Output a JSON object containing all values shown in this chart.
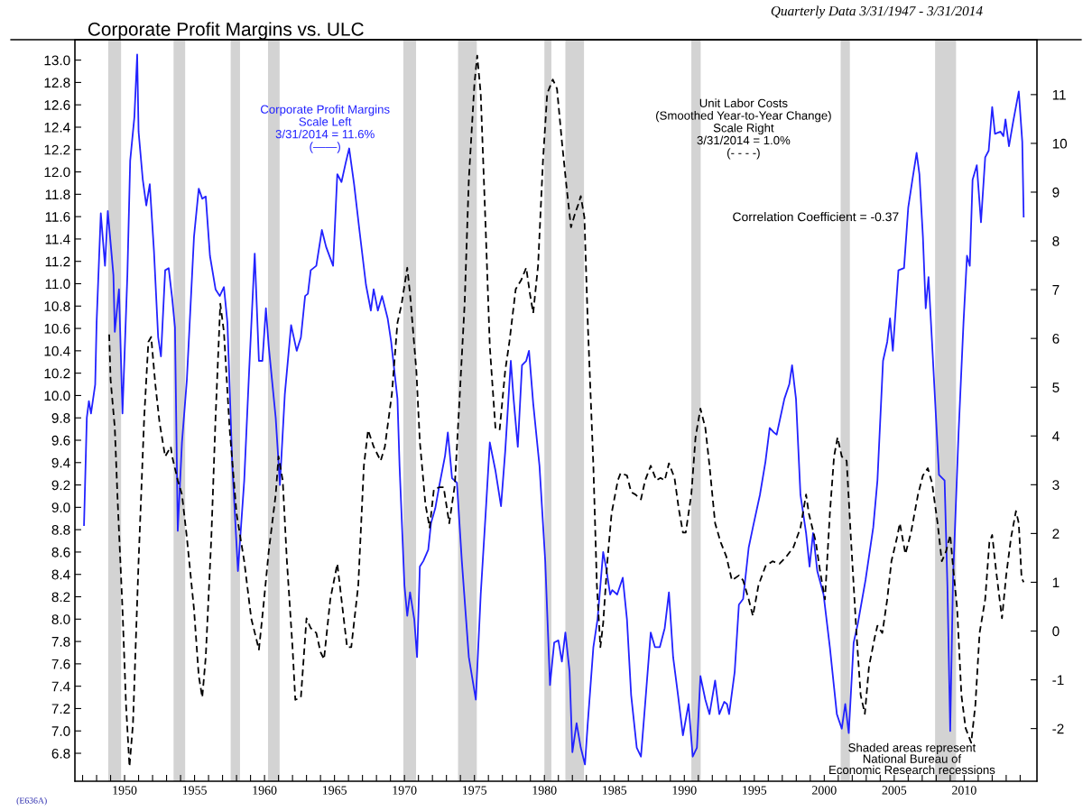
{
  "chart_data": {
    "type": "line",
    "title": "Corporate Profit Margins vs. ULC",
    "subtitle": "Quarterly Data 3/31/1947 - 3/31/2014",
    "annotations": [
      "Corporate Profit Margins\nScale Left\n3/31/2014 = 11.6%\n(——)",
      "Unit Labor Costs\n(Smoothed Year-to-Year Change)\nScale Right\n3/31/2014 = 1.0%\n(- - - -)",
      "Correlation Coefficient = -0.37",
      "Shaded areas represent\nNational Bureau of\nEconomic Research recessions",
      "(E636A)"
    ],
    "grid": false,
    "legend": false,
    "xlim": [
      1946.45,
      2015.2
    ],
    "xticks": [
      {
        "value": 1947,
        "label": null
      },
      {
        "value": 1948,
        "label": null
      },
      {
        "value": 1949,
        "label": null
      },
      1950,
      {
        "value": 1951,
        "label": null
      },
      {
        "value": 1952,
        "label": null
      },
      {
        "value": 1953,
        "label": null
      },
      {
        "value": 1954,
        "label": null
      },
      1955,
      {
        "value": 1956,
        "label": null
      },
      {
        "value": 1957,
        "label": null
      },
      {
        "value": 1958,
        "label": null
      },
      {
        "value": 1959,
        "label": null
      },
      1960,
      {
        "value": 1961,
        "label": null
      },
      {
        "value": 1962,
        "label": null
      },
      {
        "value": 1963,
        "label": null
      },
      {
        "value": 1964,
        "label": null
      },
      1965,
      {
        "value": 1966,
        "label": null
      },
      {
        "value": 1967,
        "label": null
      },
      {
        "value": 1968,
        "label": null
      },
      {
        "value": 1969,
        "label": null
      },
      1970,
      {
        "value": 1971,
        "label": null
      },
      {
        "value": 1972,
        "label": null
      },
      {
        "value": 1973,
        "label": null
      },
      {
        "value": 1974,
        "label": null
      },
      1975,
      {
        "value": 1976,
        "label": null
      },
      {
        "value": 1977,
        "label": null
      },
      {
        "value": 1978,
        "label": null
      },
      {
        "value": 1979,
        "label": null
      },
      1980,
      {
        "value": 1981,
        "label": null
      },
      {
        "value": 1982,
        "label": null
      },
      {
        "value": 1983,
        "label": null
      },
      {
        "value": 1984,
        "label": null
      },
      1985,
      {
        "value": 1986,
        "label": null
      },
      {
        "value": 1987,
        "label": null
      },
      {
        "value": 1988,
        "label": null
      },
      {
        "value": 1989,
        "label": null
      },
      1990,
      {
        "value": 1991,
        "label": null
      },
      {
        "value": 1992,
        "label": null
      },
      {
        "value": 1993,
        "label": null
      },
      {
        "value": 1994,
        "label": null
      },
      1995,
      {
        "value": 1996,
        "label": null
      },
      {
        "value": 1997,
        "label": null
      },
      {
        "value": 1998,
        "label": null
      },
      {
        "value": 1999,
        "label": null
      },
      2000,
      {
        "value": 2001,
        "label": null
      },
      {
        "value": 2002,
        "label": null
      },
      {
        "value": 2003,
        "label": null
      },
      {
        "value": 2004,
        "label": null
      },
      2005,
      {
        "value": 2006,
        "label": null
      },
      {
        "value": 2007,
        "label": null
      },
      {
        "value": 2008,
        "label": null
      },
      {
        "value": 2009,
        "label": null
      },
      2010,
      {
        "value": 2011,
        "label": null
      },
      {
        "value": 2012,
        "label": null
      },
      {
        "value": 2013,
        "label": null
      },
      {
        "value": 2014,
        "label": null
      }
    ],
    "ylim": [
      6.55,
      13.18
    ],
    "yticks": [
      6.8,
      {
        "value": 7,
        "label": "7.0"
      },
      7.2,
      7.4,
      7.6,
      7.8,
      {
        "value": 8,
        "label": "8.0"
      },
      8.2,
      8.4,
      8.6,
      8.8,
      {
        "value": 9,
        "label": "9.0"
      },
      9.2,
      9.4,
      9.6,
      9.8,
      {
        "value": 10,
        "label": "10.0"
      },
      10.2,
      10.4,
      10.6,
      10.8,
      {
        "value": 11,
        "label": "11.0"
      },
      11.2,
      11.4,
      11.6,
      11.8,
      {
        "value": 12,
        "label": "12.0"
      },
      12.2,
      12.4,
      12.6,
      12.8,
      {
        "value": 13,
        "label": "13.0"
      }
    ],
    "y2lim": [
      -3.08,
      12.12
    ],
    "y2ticks": [
      -2,
      -1,
      0,
      1,
      2,
      3,
      4,
      5,
      6,
      7,
      8,
      9,
      10,
      11
    ],
    "bands": [
      {
        "axis": "x",
        "from": 1948.83,
        "to": 1949.75,
        "color": "#d3d3d3"
      },
      {
        "axis": "x",
        "from": 1953.5,
        "to": 1954.33,
        "color": "#d3d3d3"
      },
      {
        "axis": "x",
        "from": 1957.58,
        "to": 1958.25,
        "color": "#d3d3d3"
      },
      {
        "axis": "x",
        "from": 1960.25,
        "to": 1961.08,
        "color": "#d3d3d3"
      },
      {
        "axis": "x",
        "from": 1969.92,
        "to": 1970.83,
        "color": "#d3d3d3"
      },
      {
        "axis": "x",
        "from": 1973.83,
        "to": 1975.17,
        "color": "#d3d3d3"
      },
      {
        "axis": "x",
        "from": 1980.0,
        "to": 1980.5,
        "color": "#d3d3d3"
      },
      {
        "axis": "x",
        "from": 1981.5,
        "to": 1982.83,
        "color": "#d3d3d3"
      },
      {
        "axis": "x",
        "from": 1990.5,
        "to": 1991.17,
        "color": "#d3d3d3"
      },
      {
        "axis": "x",
        "from": 2001.17,
        "to": 2001.83,
        "color": "#d3d3d3"
      },
      {
        "axis": "x",
        "from": 2007.92,
        "to": 2009.42,
        "color": "#d3d3d3"
      }
    ],
    "series": [
      {
        "color": "#2222ff",
        "line_style": "solid",
        "x": [
          1947.1,
          1947.3,
          1947.45,
          1947.6,
          1947.9,
          1948.0,
          1948.3,
          1948.6,
          1948.8,
          1949.2,
          1949.3,
          1949.6,
          1949.85,
          1950.2,
          1950.4,
          1950.7,
          1950.9,
          1951.0,
          1951.3,
          1951.55,
          1951.8,
          1952.1,
          1952.4,
          1952.6,
          1952.9,
          1953.15,
          1953.4,
          1953.6,
          1953.8,
          1954.1,
          1954.45,
          1954.96,
          1955.3,
          1955.55,
          1955.8,
          1956.1,
          1956.5,
          1956.8,
          1957.1,
          1957.35,
          1957.7,
          1958.1,
          1958.55,
          1958.9,
          1959.3,
          1959.6,
          1959.85,
          1960.1,
          1960.3,
          1960.8,
          1961.1,
          1961.45,
          1961.9,
          1962.3,
          1962.6,
          1962.9,
          1963.1,
          1963.3,
          1963.7,
          1964.1,
          1964.4,
          1964.9,
          1965.2,
          1965.5,
          1965.8,
          1966.05,
          1966.4,
          1966.8,
          1967.25,
          1967.6,
          1967.8,
          1968.1,
          1968.4,
          1968.8,
          1969.05,
          1969.5,
          1969.65,
          1970.0,
          1970.2,
          1970.4,
          1970.7,
          1970.9,
          1971.1,
          1971.35,
          1971.7,
          1971.9,
          1972.2,
          1972.5,
          1972.9,
          1973.1,
          1973.4,
          1973.75,
          1974.1,
          1974.6,
          1975.1,
          1975.45,
          1975.8,
          1976.1,
          1976.5,
          1976.9,
          1977.2,
          1977.6,
          1977.8,
          1978.1,
          1978.4,
          1978.7,
          1978.9,
          1979.2,
          1979.65,
          1980.06,
          1980.4,
          1980.7,
          1981.0,
          1981.25,
          1981.5,
          1981.8,
          1982.0,
          1982.3,
          1982.6,
          1982.9,
          1983.1,
          1983.5,
          1983.8,
          1984.2,
          1984.4,
          1984.7,
          1984.85,
          1985.2,
          1985.6,
          1985.9,
          1986.2,
          1986.6,
          1986.9,
          1987.2,
          1987.6,
          1987.9,
          1988.25,
          1988.6,
          1988.9,
          1989.2,
          1989.55,
          1989.9,
          1990.3,
          1990.6,
          1990.9,
          1991.15,
          1991.5,
          1991.8,
          1992.2,
          1992.5,
          1992.85,
          1993.05,
          1993.2,
          1993.6,
          1993.9,
          1994.2,
          1994.6,
          1994.9,
          1995.4,
          1995.8,
          1996.1,
          1996.4,
          1996.6,
          1997.15,
          1997.5,
          1997.7,
          1997.98,
          1998.3,
          1998.7,
          1998.95,
          1999.2,
          1999.5,
          1999.95,
          2000.4,
          2000.9,
          2001.25,
          2001.5,
          2001.75,
          2002.1,
          2002.4,
          2002.95,
          2003.5,
          2003.8,
          2004.2,
          2004.5,
          2004.7,
          2004.9,
          2005.3,
          2005.7,
          2006.0,
          2006.3,
          2006.6,
          2006.8,
          2007.05,
          2007.25,
          2007.45,
          2007.7,
          2008.2,
          2008.6,
          2008.8,
          2009.0,
          2009.2,
          2009.6,
          2009.95,
          2010.2,
          2010.4,
          2010.6,
          2010.9,
          2011.2,
          2011.5,
          2011.75,
          2012.0,
          2012.2,
          2012.6,
          2012.8,
          2012.95,
          2013.2,
          2013.5,
          2013.9,
          2014.15,
          2014.25
        ],
        "values": [
          8.84,
          9.8,
          9.95,
          9.84,
          10.1,
          10.65,
          11.63,
          11.16,
          11.65,
          11.08,
          10.57,
          10.95,
          9.84,
          11.08,
          12.1,
          12.49,
          13.05,
          12.36,
          11.93,
          11.7,
          11.89,
          11.29,
          10.52,
          10.35,
          11.12,
          11.14,
          10.87,
          10.61,
          8.79,
          9.58,
          10.14,
          11.42,
          11.85,
          11.76,
          11.78,
          11.25,
          10.95,
          10.89,
          10.97,
          10.65,
          9.37,
          8.43,
          9.24,
          10.22,
          11.27,
          10.31,
          10.31,
          10.78,
          10.44,
          9.8,
          9.2,
          10.01,
          10.63,
          10.4,
          10.52,
          10.89,
          10.91,
          11.12,
          11.16,
          11.48,
          11.33,
          11.16,
          11.98,
          11.91,
          12.08,
          12.21,
          11.89,
          11.46,
          10.99,
          10.76,
          10.95,
          10.76,
          10.89,
          10.69,
          10.48,
          9.97,
          9.37,
          8.3,
          8.03,
          8.24,
          8.0,
          7.66,
          8.47,
          8.52,
          8.62,
          8.86,
          8.99,
          9.2,
          9.46,
          9.67,
          9.26,
          9.22,
          8.52,
          7.66,
          7.28,
          8.22,
          8.94,
          9.58,
          9.33,
          9.01,
          9.5,
          10.31,
          9.97,
          9.54,
          10.27,
          10.31,
          10.4,
          9.93,
          9.37,
          8.52,
          7.41,
          7.79,
          7.81,
          7.62,
          7.88,
          7.53,
          6.81,
          7.07,
          6.85,
          6.7,
          7.07,
          7.75,
          8.0,
          8.6,
          8.47,
          8.22,
          8.26,
          8.22,
          8.37,
          8.0,
          7.32,
          6.85,
          6.77,
          7.24,
          7.88,
          7.75,
          7.75,
          7.92,
          8.24,
          7.66,
          7.32,
          6.96,
          7.24,
          6.77,
          6.85,
          7.49,
          7.28,
          7.15,
          7.45,
          7.15,
          7.26,
          7.24,
          7.15,
          7.53,
          8.13,
          8.18,
          8.64,
          8.82,
          9.11,
          9.41,
          9.71,
          9.67,
          9.65,
          9.97,
          10.1,
          10.27,
          9.97,
          9.11,
          8.77,
          8.47,
          8.77,
          8.43,
          8.22,
          7.75,
          7.15,
          7.02,
          7.24,
          6.98,
          7.79,
          7.96,
          8.35,
          8.82,
          9.24,
          10.31,
          10.48,
          10.69,
          10.4,
          11.12,
          11.14,
          11.68,
          11.93,
          12.17,
          11.98,
          11.42,
          10.78,
          11.06,
          10.48,
          9.29,
          9.24,
          8.3,
          7.0,
          8.35,
          9.67,
          10.65,
          11.25,
          11.16,
          11.93,
          12.06,
          11.55,
          12.13,
          12.19,
          12.58,
          12.34,
          12.36,
          12.32,
          12.47,
          12.23,
          12.45,
          12.72,
          12.27,
          11.6
        ]
      },
      {
        "color": "#000000",
        "line_style": "dashed",
        "axis": "y2",
        "x": [
          1948.9,
          1949.0,
          1949.3,
          1949.5,
          1949.85,
          1950.1,
          1950.35,
          1950.6,
          1951.0,
          1951.4,
          1951.7,
          1951.9,
          1952.2,
          1952.5,
          1952.9,
          1953.3,
          1953.4,
          1953.8,
          1954.1,
          1954.45,
          1954.96,
          1955.3,
          1955.55,
          1955.8,
          1956.2,
          1956.5,
          1956.84,
          1957.1,
          1957.5,
          1958.0,
          1958.55,
          1959.05,
          1959.6,
          1959.9,
          1960.3,
          1960.8,
          1961.0,
          1961.3,
          1961.6,
          1962.0,
          1962.2,
          1962.6,
          1963.0,
          1963.3,
          1963.7,
          1964.0,
          1964.25,
          1964.7,
          1965.2,
          1965.5,
          1965.9,
          1966.2,
          1966.7,
          1967.1,
          1967.4,
          1967.8,
          1968.3,
          1968.6,
          1969.1,
          1969.5,
          1969.8,
          1970.2,
          1970.4,
          1970.85,
          1971.1,
          1971.5,
          1971.8,
          1972.1,
          1972.5,
          1972.8,
          1973.2,
          1973.6,
          1973.9,
          1974.3,
          1974.6,
          1975.0,
          1975.2,
          1975.45,
          1975.8,
          1976.1,
          1976.5,
          1976.8,
          1977.2,
          1977.5,
          1977.95,
          1978.35,
          1978.7,
          1978.97,
          1979.2,
          1979.55,
          1979.9,
          1980.2,
          1980.6,
          1980.9,
          1981.25,
          1981.6,
          1981.9,
          1982.2,
          1982.45,
          1982.6,
          1982.86,
          1983.1,
          1983.5,
          1983.75,
          1984.0,
          1984.2,
          1984.5,
          1984.8,
          1985.25,
          1985.45,
          1985.9,
          1986.2,
          1986.5,
          1986.9,
          1987.2,
          1987.6,
          1988.0,
          1988.3,
          1988.6,
          1988.9,
          1989.3,
          1989.6,
          1989.9,
          1990.1,
          1990.5,
          1990.8,
          1991.15,
          1991.5,
          1991.8,
          1992.2,
          1992.6,
          1993.0,
          1993.4,
          1993.9,
          1994.2,
          1994.6,
          1994.9,
          1995.3,
          1995.8,
          1996.3,
          1996.8,
          1997.3,
          1997.8,
          1998.3,
          1998.7,
          1998.9,
          1999.4,
          1999.7,
          2000.05,
          2000.4,
          2000.7,
          2000.95,
          2001.25,
          2001.6,
          2001.9,
          2002.3,
          2002.6,
          2002.9,
          2003.2,
          2003.6,
          2003.8,
          2004.15,
          2004.5,
          2004.8,
          2005.2,
          2005.4,
          2005.8,
          2006.2,
          2006.7,
          2007.05,
          2007.4,
          2007.7,
          2008.1,
          2008.4,
          2008.7,
          2009.0,
          2009.2,
          2009.5,
          2009.8,
          2010.1,
          2010.5,
          2010.8,
          2011.1,
          2011.5,
          2011.8,
          2012.0,
          2012.3,
          2012.7,
          2013.0,
          2013.35,
          2013.7,
          2013.9,
          2014.1,
          2014.25
        ],
        "values": [
          6.08,
          5.15,
          4.17,
          2.7,
          0.45,
          -1.5,
          -2.78,
          -1.9,
          1.43,
          4.37,
          5.93,
          6.03,
          5.05,
          4.27,
          3.58,
          3.78,
          3.58,
          3.09,
          2.8,
          1.92,
          0.45,
          -0.92,
          -1.36,
          -0.53,
          1.92,
          4.37,
          6.71,
          6.13,
          4.17,
          2.41,
          1.43,
          0.26,
          -0.38,
          0.45,
          1.63,
          2.8,
          3.58,
          3.09,
          1.43,
          -0.33,
          -1.41,
          -1.36,
          0.26,
          0.06,
          -0.04,
          -0.43,
          -0.58,
          0.65,
          1.38,
          0.65,
          -0.33,
          -0.33,
          0.94,
          3.39,
          4.12,
          3.78,
          3.49,
          3.78,
          4.86,
          6.32,
          6.71,
          7.45,
          6.91,
          5.34,
          3.88,
          2.6,
          2.12,
          2.9,
          2.95,
          2.95,
          2.21,
          3.0,
          4.56,
          6.71,
          9.26,
          11.22,
          11.8,
          11.02,
          8.28,
          5.83,
          4.17,
          4.12,
          5.34,
          5.93,
          7.01,
          7.2,
          7.45,
          6.91,
          6.52,
          7.5,
          9.65,
          11.02,
          11.31,
          11.12,
          10.04,
          9.06,
          8.28,
          8.57,
          8.77,
          8.92,
          8.48,
          6.32,
          3.39,
          0.94,
          -0.33,
          0.16,
          1.43,
          2.41,
          3.09,
          3.24,
          3.19,
          2.85,
          2.8,
          2.7,
          3.09,
          3.39,
          3.09,
          3.14,
          3.09,
          3.44,
          3.14,
          2.51,
          2.02,
          2.02,
          2.8,
          3.97,
          4.56,
          4.17,
          3.39,
          2.21,
          1.82,
          1.53,
          1.04,
          1.14,
          1.04,
          0.65,
          0.31,
          0.94,
          1.33,
          1.43,
          1.38,
          1.53,
          1.72,
          2.12,
          2.8,
          2.41,
          1.82,
          1.23,
          0.65,
          2.41,
          3.58,
          3.97,
          3.58,
          3.49,
          1.92,
          -0.04,
          -1.31,
          -1.7,
          -0.72,
          -0.14,
          0.11,
          -0.04,
          0.65,
          1.43,
          1.92,
          2.21,
          1.58,
          2.02,
          2.8,
          3.19,
          3.34,
          3.04,
          2.21,
          1.43,
          1.63,
          1.97,
          1.33,
          0.45,
          -1.31,
          -1.99,
          -2.29,
          -1.51,
          -0.04,
          0.65,
          1.82,
          1.97,
          1.19,
          0.26,
          1.14,
          1.92,
          2.46,
          2.21,
          1.09,
          1.0
        ]
      }
    ]
  }
}
